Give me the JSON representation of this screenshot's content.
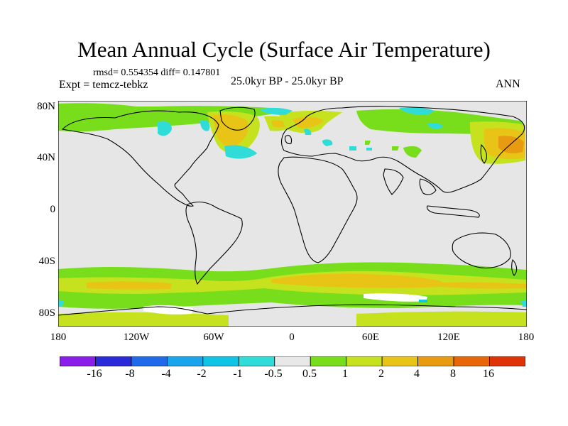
{
  "header": {
    "title": "Mean Annual Cycle (Surface Air Temperature)",
    "stats": "rmsd= 0.554354 diff= 0.147801",
    "experiment": "Expt = temcz-tebkz",
    "period": "25.0kyr BP - 25.0kyr BP",
    "season": "ANN"
  },
  "axes": {
    "y_labels": [
      "80N",
      "40N",
      "0",
      "40S",
      "80S"
    ],
    "x_labels": [
      "180",
      "120W",
      "60W",
      "0",
      "60E",
      "120E",
      "180"
    ]
  },
  "colorbar": {
    "labels": [
      "-16",
      "-8",
      "-4",
      "-2",
      "-1",
      "-0.5",
      "0.5",
      "1",
      "2",
      "4",
      "8",
      "16"
    ],
    "colors": [
      "#8a1ee8",
      "#2a2ad8",
      "#1e6ae8",
      "#1aa4ec",
      "#10c4e6",
      "#30dcd8",
      "#e8e8e8",
      "#78de1c",
      "#c6e21e",
      "#e8c416",
      "#e89a10",
      "#e8660a",
      "#e03208"
    ]
  },
  "map": {
    "background_color": "#e6e6e6",
    "coast_color": "#000000"
  }
}
